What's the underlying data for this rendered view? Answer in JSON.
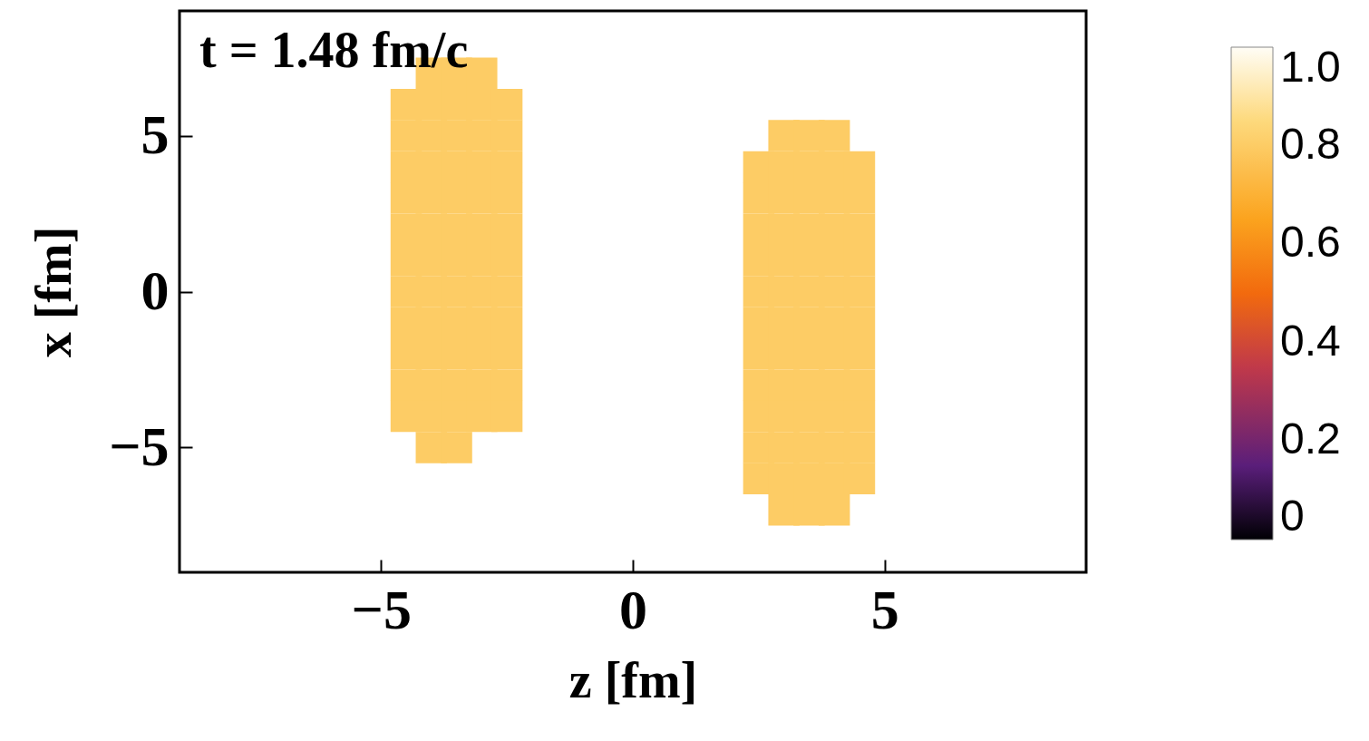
{
  "chart_data": {
    "type": "scatter",
    "marker": "square",
    "xlabel": "z [fm]",
    "ylabel": "x [fm]",
    "annotations": [
      "t = 1.48 fm/c"
    ],
    "xlim": [
      -9,
      9
    ],
    "xticks": [
      {
        "value": -5,
        "label": "−5"
      },
      0,
      5
    ],
    "ylim": [
      -9,
      9
    ],
    "yticks": [
      {
        "value": -5,
        "label": "−5"
      },
      0,
      5
    ],
    "clim": [
      0,
      1
    ],
    "cticks": [
      0,
      0.2,
      0.4,
      0.6,
      0.8,
      {
        "value": 1,
        "label": "1.0"
      }
    ],
    "x": [
      -4,
      -3.5,
      -3,
      -4.5,
      -4,
      -3.5,
      -3,
      -2.5,
      -4.5,
      -4,
      -3.5,
      -3,
      -2.5,
      -4.5,
      -4,
      -3.5,
      -3,
      -2.5,
      -4.5,
      -4,
      -3.5,
      -3,
      -2.5,
      -4.5,
      -4,
      -3.5,
      -3,
      -2.5,
      -4.5,
      -4,
      -3.5,
      -3,
      -2.5,
      -4.5,
      -4,
      -3.5,
      -3,
      -2.5,
      -4.5,
      -4,
      -3.5,
      -3,
      -2.5,
      -4.5,
      -4,
      -3.5,
      -3,
      -2.5,
      -4.5,
      -4,
      -3.5,
      -3,
      -2.5,
      -4.5,
      -4,
      -3.5,
      -3,
      -2.5,
      -4,
      -3.5,
      3,
      3.5,
      4,
      2.5,
      3,
      3.5,
      4,
      4.5,
      2.5,
      3,
      3.5,
      4,
      4.5,
      2.5,
      3,
      3.5,
      4,
      4.5,
      2.5,
      3,
      3.5,
      4,
      4.5,
      2.5,
      3,
      3.5,
      4,
      4.5,
      2.5,
      3,
      3.5,
      4,
      4.5,
      2.5,
      3,
      3.5,
      4,
      4.5,
      2.5,
      3,
      3.5,
      4,
      4.5,
      2.5,
      3,
      3.5,
      4,
      4.5,
      2.5,
      3,
      3.5,
      4,
      4.5,
      2.5,
      3,
      3.5,
      4,
      4.5,
      3,
      3.5,
      4
    ],
    "values": [
      7,
      7,
      7,
      6,
      6,
      6,
      6,
      6,
      5,
      5,
      5,
      5,
      5,
      4,
      4,
      4,
      4,
      4,
      3,
      3,
      3,
      3,
      3,
      2,
      2,
      2,
      2,
      2,
      1,
      1,
      1,
      1,
      1,
      0,
      0,
      0,
      0,
      0,
      -1,
      -1,
      -1,
      -1,
      -1,
      -2,
      -2,
      -2,
      -2,
      -2,
      -3,
      -3,
      -3,
      -3,
      -3,
      -4,
      -4,
      -4,
      -4,
      -4,
      -5,
      -5,
      5,
      5,
      5,
      4,
      4,
      4,
      4,
      4,
      3,
      3,
      3,
      3,
      3,
      2,
      2,
      2,
      2,
      2,
      1,
      1,
      1,
      1,
      1,
      0,
      0,
      0,
      0,
      0,
      -1,
      -1,
      -1,
      -1,
      -1,
      -2,
      -2,
      -2,
      -2,
      -2,
      -3,
      -3,
      -3,
      -3,
      -3,
      -4,
      -4,
      -4,
      -4,
      -4,
      -5,
      -5,
      -5,
      -5,
      -5,
      -6,
      -6,
      -6,
      -6,
      -6,
      -7,
      -7,
      -7
    ],
    "cvalues": [
      0.8,
      0.8,
      0.8,
      0.8,
      0.8,
      0.8,
      0.8,
      0.8,
      0.8,
      0.8,
      0.8,
      0.8,
      0.8,
      0.8,
      0.8,
      0.8,
      0.8,
      0.8,
      0.8,
      0.8,
      0.8,
      0.8,
      0.8,
      0.8,
      0.8,
      0.8,
      0.8,
      0.8,
      0.8,
      0.8,
      0.8,
      0.8,
      0.8,
      0.8,
      0.8,
      0.8,
      0.8,
      0.8,
      0.8,
      0.8,
      0.8,
      0.8,
      0.8,
      0.8,
      0.8,
      0.8,
      0.8,
      0.8,
      0.8,
      0.8,
      0.8,
      0.8,
      0.8,
      0.8,
      0.8,
      0.8,
      0.8,
      0.8,
      0.8,
      0.8,
      0.8,
      0.8,
      0.8,
      0.8,
      0.8,
      0.8,
      0.8,
      0.8,
      0.8,
      0.8,
      0.8,
      0.8,
      0.8,
      0.8,
      0.8,
      0.8,
      0.8,
      0.8,
      0.8,
      0.8,
      0.8,
      0.8,
      0.8,
      0.8,
      0.8,
      0.8,
      0.8,
      0.8,
      0.8,
      0.8,
      0.8,
      0.8,
      0.8,
      0.8,
      0.8,
      0.8,
      0.8,
      0.8,
      0.8,
      0.8,
      0.8,
      0.8,
      0.8,
      0.8,
      0.8,
      0.8,
      0.8,
      0.8,
      0.8,
      0.8,
      0.8,
      0.8,
      0.8,
      0.8,
      0.8,
      0.8,
      0.8,
      0.8,
      0.8,
      0.8,
      0.8
    ]
  }
}
